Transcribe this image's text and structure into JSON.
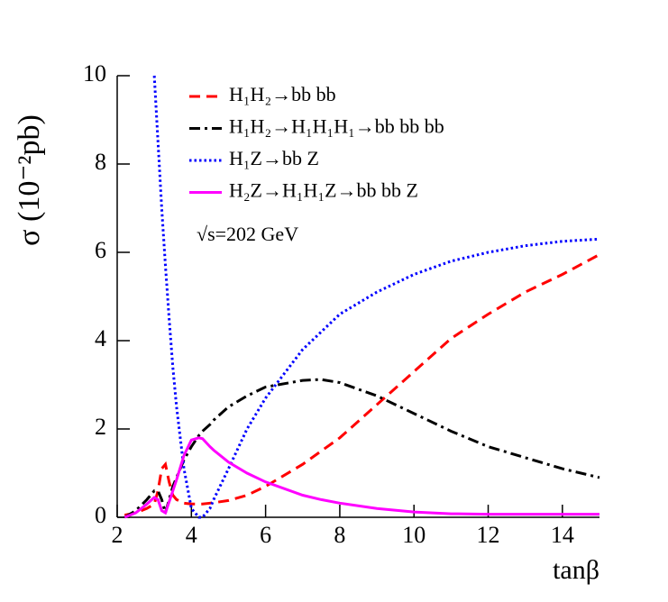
{
  "chart_data": {
    "type": "line",
    "xlabel": "tanβ",
    "ylabel": "σ (10⁻²pb)",
    "annotation": "√s=202 GeV",
    "x": [
      2.2,
      2.5,
      2.8,
      3.0,
      3.1,
      3.2,
      3.3,
      3.4,
      3.5,
      3.6,
      3.8,
      4.0,
      4.2,
      4.3,
      4.5,
      4.6,
      5,
      5.5,
      6,
      7,
      7.5,
      8,
      9,
      10,
      11,
      12,
      13,
      14,
      15
    ],
    "series": [
      {
        "name": "H₁H₂→bb bb",
        "color": "#ff0000",
        "style": "dashed",
        "values": [
          0.05,
          0.1,
          0.2,
          0.3,
          0.6,
          1.1,
          1.2,
          0.8,
          0.5,
          0.4,
          0.32,
          0.3,
          0.3,
          0.3,
          0.32,
          0.33,
          0.38,
          0.5,
          0.7,
          1.2,
          1.5,
          1.8,
          2.55,
          3.3,
          4.05,
          4.6,
          5.1,
          5.5,
          5.95
        ]
      },
      {
        "name": "H₁H₂→H₁H₁H₁→bb bb bb",
        "color": "#000000",
        "style": "dashdot",
        "values": [
          0,
          0.15,
          0.4,
          0.6,
          0.6,
          0.4,
          0.1,
          0.4,
          0.7,
          0.9,
          1.3,
          1.6,
          1.85,
          1.95,
          2.1,
          2.2,
          2.5,
          2.75,
          2.95,
          3.1,
          3.12,
          3.05,
          2.75,
          2.35,
          1.95,
          1.6,
          1.35,
          1.1,
          0.9
        ]
      },
      {
        "name": "H₁Z→bb Z",
        "color": "#0000ff",
        "style": "dotted",
        "values": [
          null,
          null,
          null,
          10,
          8.5,
          7,
          5.7,
          4.5,
          3.4,
          2.5,
          1.1,
          0.2,
          0,
          0,
          0.2,
          0.4,
          1.1,
          2.0,
          2.7,
          3.8,
          4.2,
          4.6,
          5.1,
          5.5,
          5.8,
          6.0,
          6.15,
          6.25,
          6.3
        ]
      },
      {
        "name": "H₂Z→H₁H₁Z→bb bb Z",
        "color": "#ff00ff",
        "style": "solid",
        "values": [
          0,
          0.1,
          0.3,
          0.45,
          0.4,
          0.15,
          0.1,
          0.35,
          0.6,
          0.85,
          1.4,
          1.75,
          1.8,
          1.78,
          1.6,
          1.52,
          1.25,
          1.0,
          0.8,
          0.5,
          0.4,
          0.32,
          0.2,
          0.12,
          0.08,
          0.07,
          0.07,
          0.07,
          0.07
        ]
      }
    ],
    "xlim": [
      2,
      15
    ],
    "xticks": [
      2,
      4,
      6,
      8,
      10,
      12,
      14
    ],
    "ylim": [
      0,
      10
    ],
    "yticks": [
      0,
      2,
      4,
      6,
      8,
      10
    ]
  }
}
